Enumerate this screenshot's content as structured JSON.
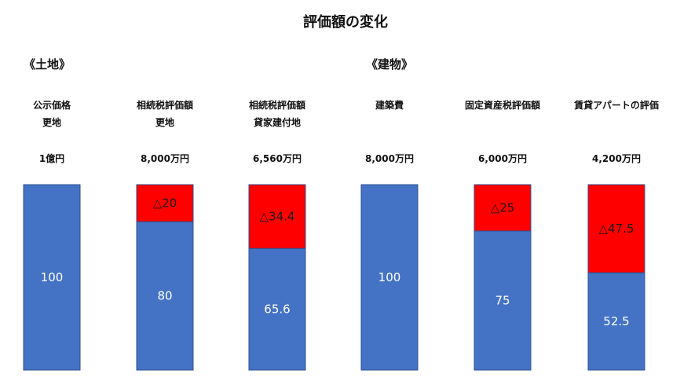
{
  "title": "評価額の変化",
  "sections": {
    "land": "《土地》",
    "building": "《建物》"
  },
  "columns": [
    {
      "label_line1": "公示価格",
      "label_line2": "更地",
      "amount": "1億円"
    },
    {
      "label_line1": "相続税評価額",
      "label_line2": "更地",
      "amount": "8,000万円"
    },
    {
      "label_line1": "相続税評価額",
      "label_line2": "貸家建付地",
      "amount": "6,560万円"
    },
    {
      "label_line1": "建築費",
      "label_line2": "",
      "amount": "8,000万円"
    },
    {
      "label_line1": "固定資産税評価額",
      "label_line2": "",
      "amount": "6,000万円"
    },
    {
      "label_line1": "賃貸アパートの評価",
      "label_line2": "",
      "amount": "4,200万円"
    }
  ],
  "colors": {
    "value": "#4472C4",
    "reduction": "#FF0000",
    "text_light": "#FFFFFF",
    "text_dark": "#1A1A1A"
  },
  "chart_data": {
    "type": "bar",
    "stacked": true,
    "categories": [
      "公示価格 更地",
      "相続税評価額 更地",
      "相続税評価額 貸家建付地",
      "建築費",
      "固定資産税評価額",
      "賃貸アパートの評価"
    ],
    "series": [
      {
        "values": [
          100,
          80,
          65.6,
          100,
          75,
          52.5
        ],
        "labels": [
          "100",
          "80",
          "65.6",
          "100",
          "75",
          "52.5"
        ]
      },
      {
        "values": [
          0,
          20,
          34.4,
          0,
          25,
          47.5
        ],
        "labels": [
          "",
          "△20",
          "△34.4",
          "",
          "△25",
          "△47.5"
        ]
      }
    ],
    "ylim": [
      0,
      100
    ],
    "grid": false
  }
}
